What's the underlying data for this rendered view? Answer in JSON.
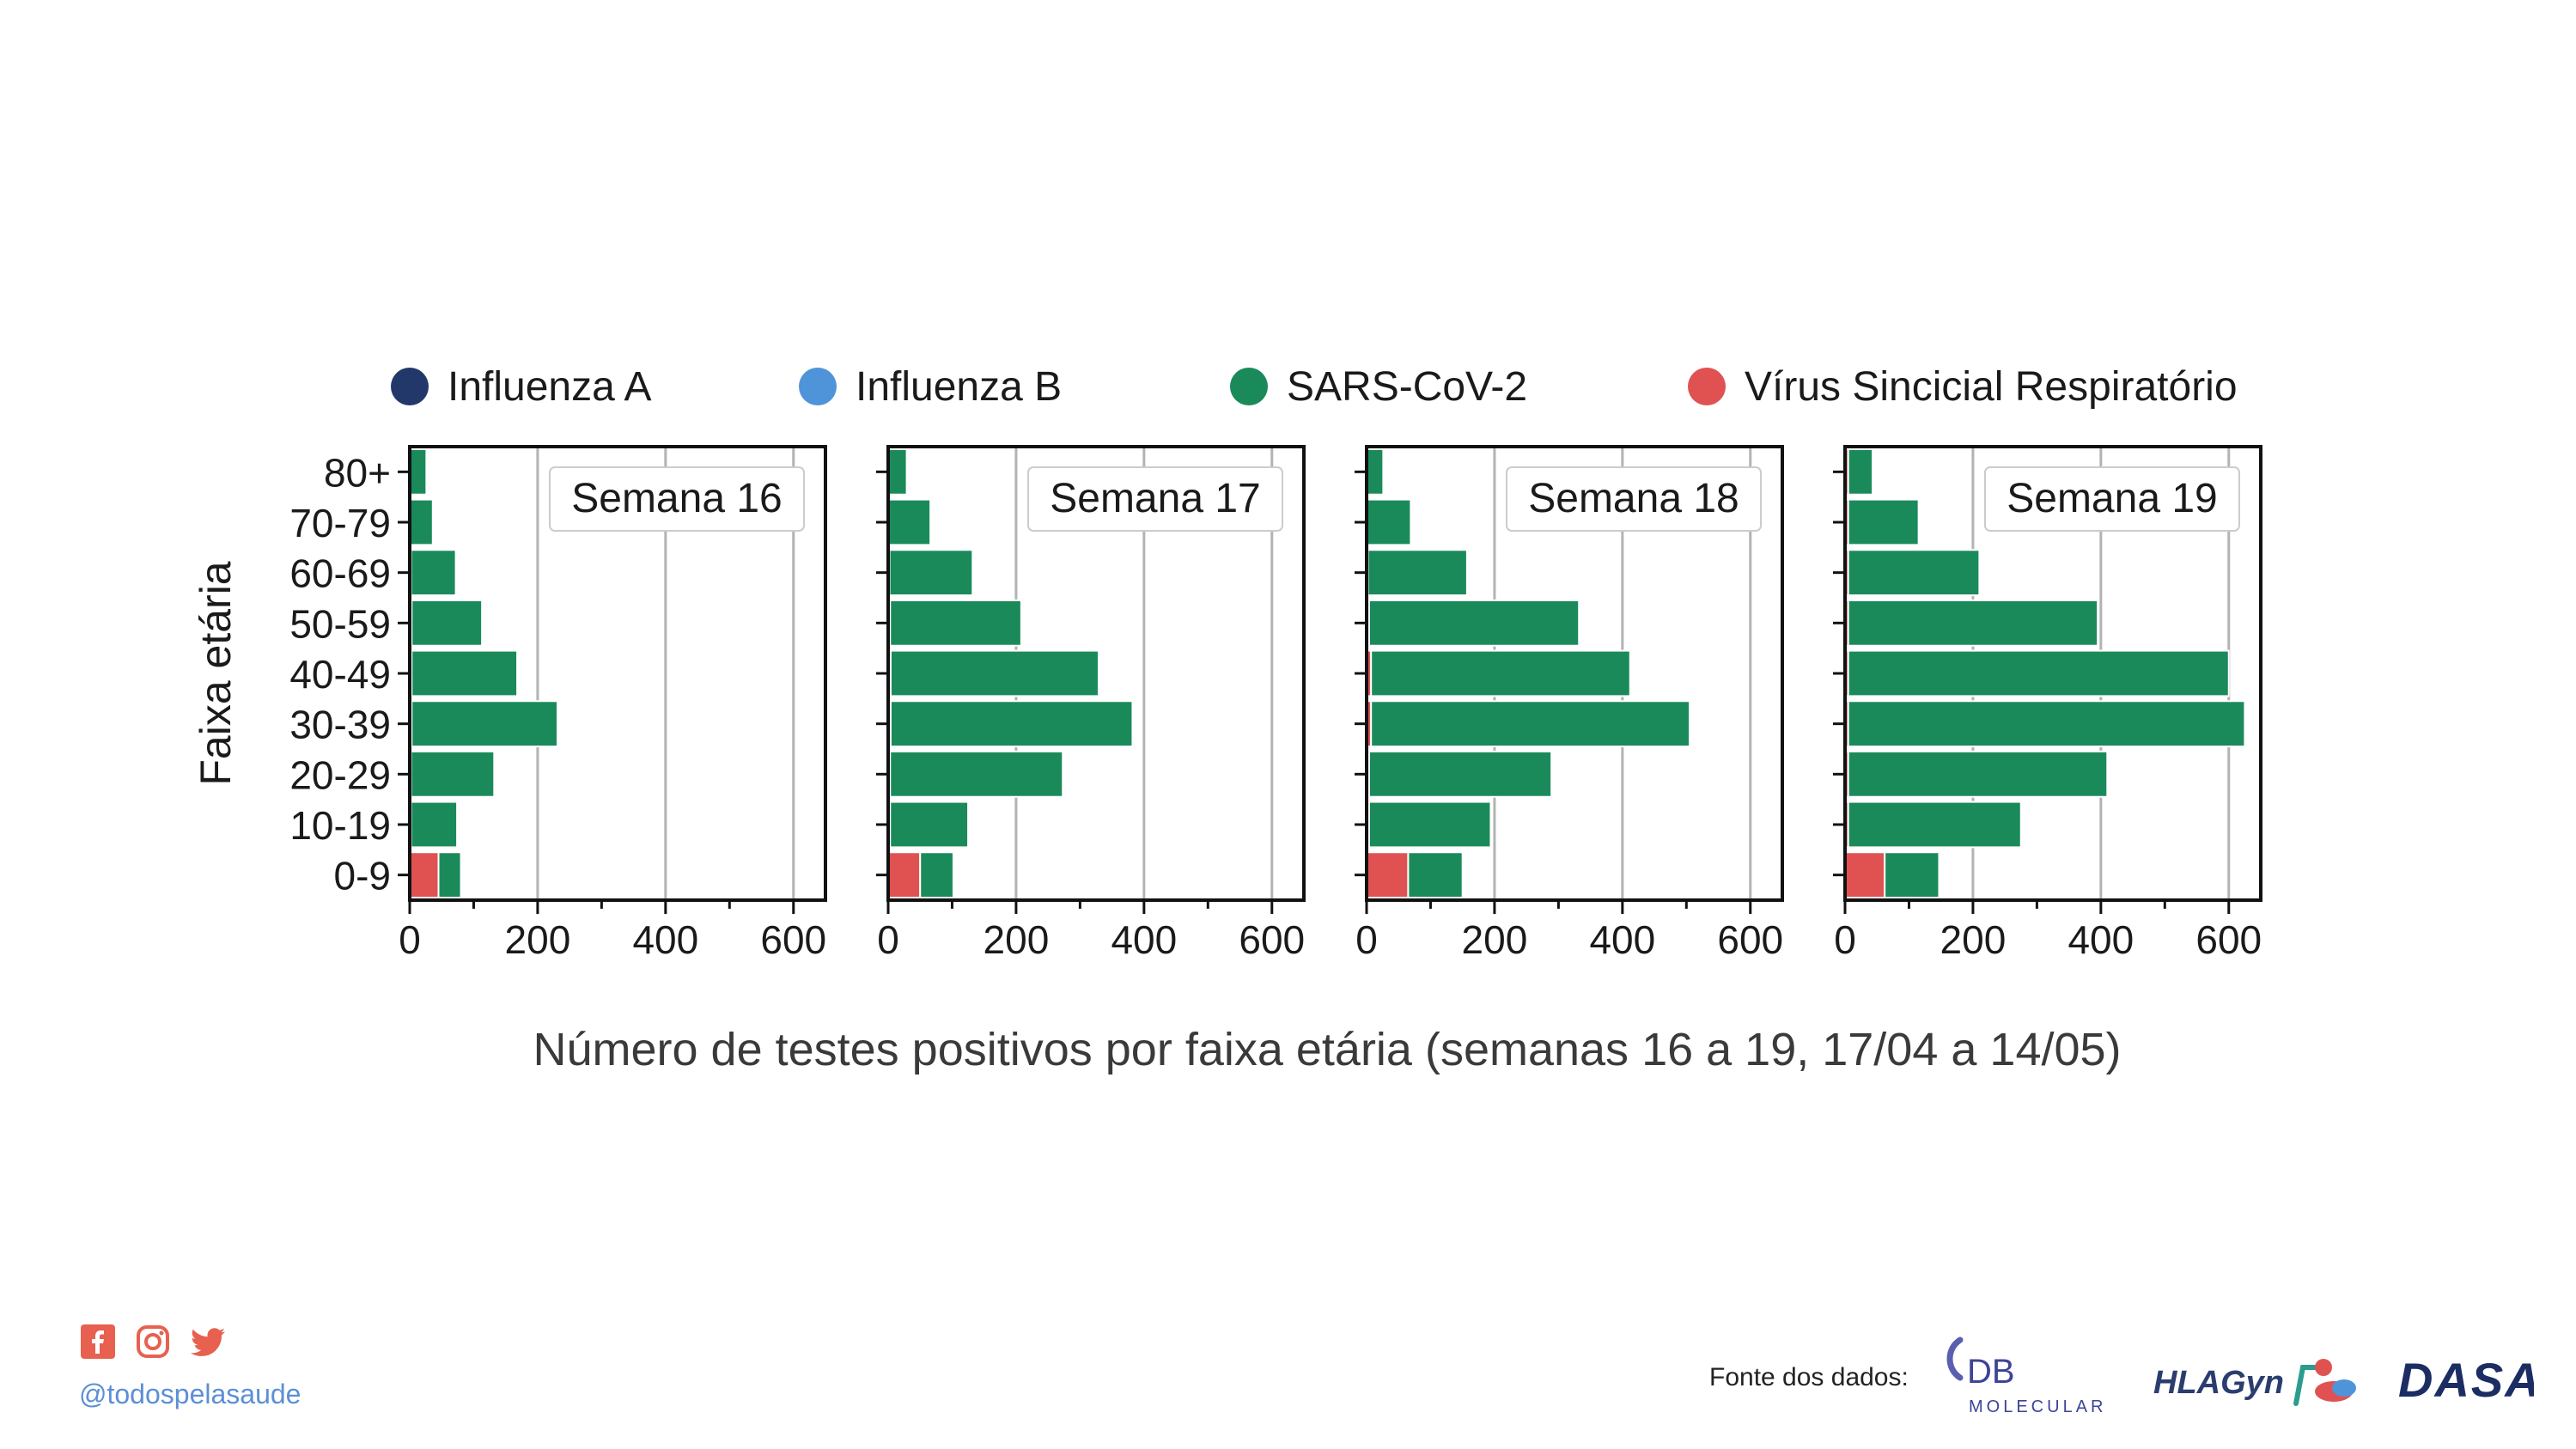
{
  "legend": [
    {
      "label": "Influenza A",
      "color": "#22386b"
    },
    {
      "label": "Influenza B",
      "color": "#4f94d9"
    },
    {
      "label": "SARS-CoV-2",
      "color": "#1b8a5a"
    },
    {
      "label": "Vírus Sincicial Respiratório",
      "color": "#e05252"
    }
  ],
  "chart_data": {
    "type": "bar",
    "orientation": "horizontal",
    "stacked": true,
    "ylabel": "Faixa etária",
    "xlabel": "Número de testes positivos por faixa etária (semanas 16 a 19, 17/04 a 14/05)",
    "categories": [
      "0-9",
      "10-19",
      "20-29",
      "30-39",
      "40-49",
      "50-59",
      "60-69",
      "70-79",
      "80+"
    ],
    "xlim": [
      0,
      650
    ],
    "xticks": [
      0,
      200,
      400,
      600
    ],
    "grid": "vertical",
    "panels": [
      {
        "title": "Semana 16",
        "series": [
          {
            "name": "Influenza A",
            "values": [
              0,
              0,
              0,
              0,
              0,
              0,
              0,
              0,
              0
            ]
          },
          {
            "name": "Influenza B",
            "values": [
              0,
              0,
              0,
              0,
              0,
              0,
              0,
              0,
              0
            ]
          },
          {
            "name": "Vírus Sincicial Respiratório",
            "values": [
              45,
              2,
              2,
              3,
              3,
              3,
              2,
              1,
              1
            ]
          },
          {
            "name": "SARS-CoV-2",
            "values": [
              35,
              72,
              130,
              228,
              165,
              110,
              70,
              35,
              25
            ]
          }
        ]
      },
      {
        "title": "Semana 17",
        "series": [
          {
            "name": "Influenza A",
            "values": [
              0,
              0,
              0,
              0,
              0,
              0,
              0,
              0,
              0
            ]
          },
          {
            "name": "Influenza B",
            "values": [
              0,
              0,
              0,
              0,
              0,
              0,
              0,
              0,
              0
            ]
          },
          {
            "name": "Vírus Sincicial Respiratório",
            "values": [
              50,
              3,
              3,
              4,
              4,
              3,
              2,
              1,
              1
            ]
          },
          {
            "name": "SARS-CoV-2",
            "values": [
              52,
              122,
              270,
              378,
              325,
              205,
              130,
              65,
              28
            ]
          }
        ]
      },
      {
        "title": "Semana 18",
        "series": [
          {
            "name": "Influenza A",
            "values": [
              0,
              0,
              0,
              0,
              0,
              0,
              0,
              0,
              0
            ]
          },
          {
            "name": "Influenza B",
            "values": [
              0,
              0,
              0,
              0,
              0,
              0,
              0,
              0,
              0
            ]
          },
          {
            "name": "Vírus Sincicial Respiratório",
            "values": [
              65,
              4,
              4,
              7,
              7,
              4,
              2,
              1,
              1
            ]
          },
          {
            "name": "SARS-CoV-2",
            "values": [
              85,
              190,
              285,
              498,
              405,
              328,
              155,
              68,
              25
            ]
          }
        ]
      },
      {
        "title": "Semana 19",
        "series": [
          {
            "name": "Influenza A",
            "values": [
              0,
              0,
              0,
              0,
              0,
              0,
              0,
              0,
              0
            ]
          },
          {
            "name": "Influenza B",
            "values": [
              0,
              0,
              0,
              0,
              0,
              0,
              0,
              0,
              0
            ]
          },
          {
            "name": "Vírus Sincicial Respiratório",
            "values": [
              62,
              5,
              5,
              5,
              5,
              5,
              5,
              5,
              5
            ]
          },
          {
            "name": "SARS-CoV-2",
            "values": [
              85,
              270,
              405,
              620,
              595,
              390,
              205,
              110,
              38
            ]
          }
        ]
      }
    ]
  },
  "footer": {
    "handle": "@todospelasaude",
    "source_label": "Fonte dos dados:",
    "logos": [
      "DB",
      "MOLECULAR",
      "HLAGyn",
      "DASA"
    ],
    "social_icons": [
      "facebook-icon",
      "instagram-icon",
      "twitter-icon"
    ],
    "accent": "#e8604f"
  }
}
